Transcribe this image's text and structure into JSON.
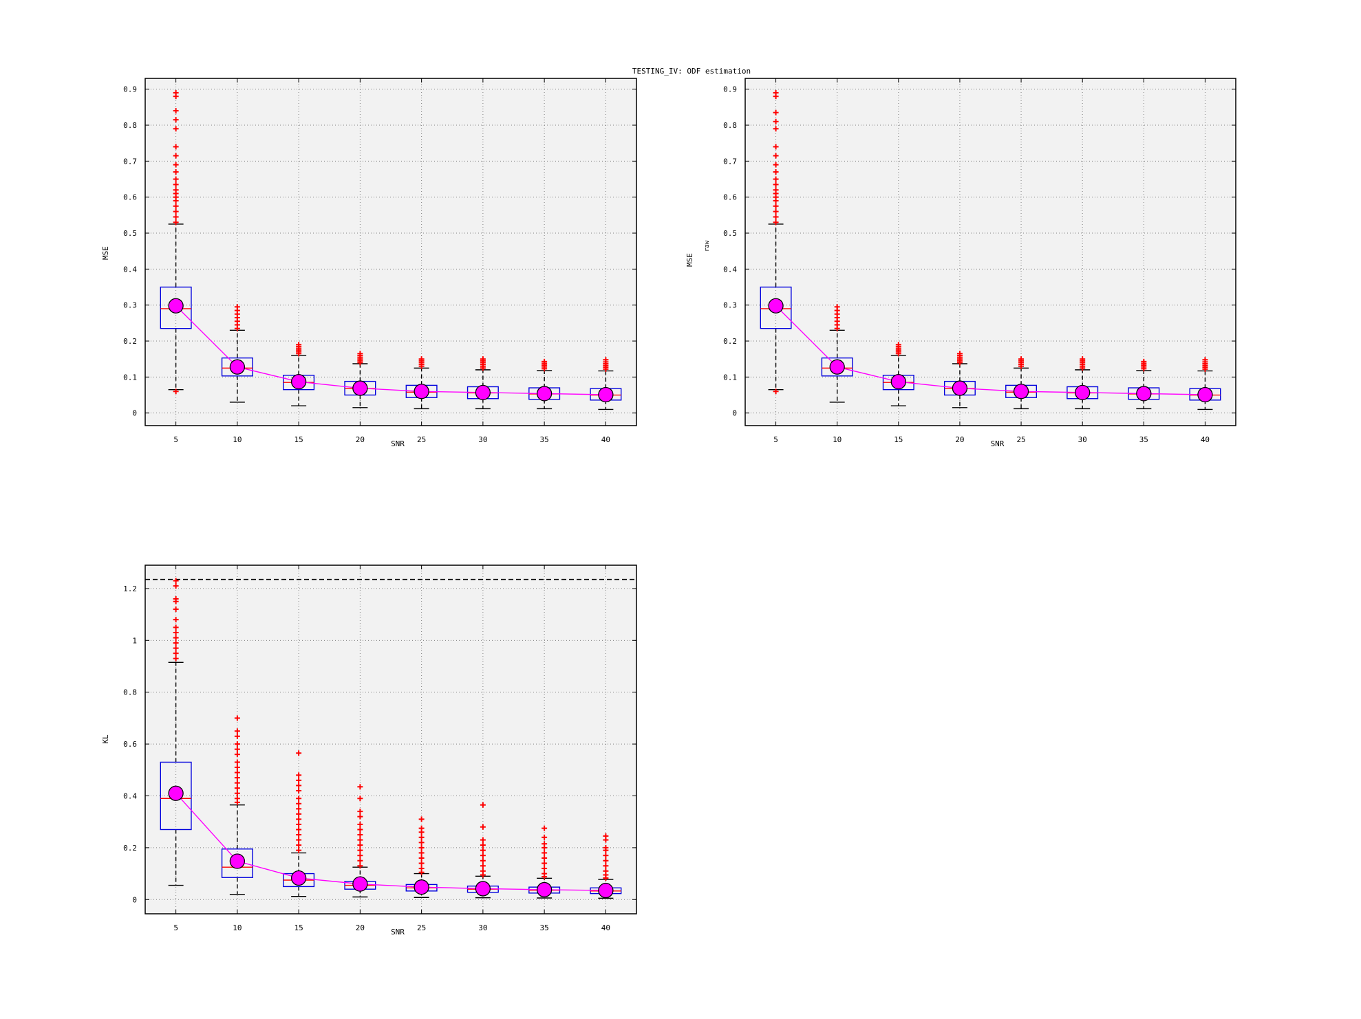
{
  "figure_title": "TESTING_IV: ODF estimation",
  "colors": {
    "panel_bg": "#f2f2f2",
    "box": "#0000dd",
    "median": "#ff0000",
    "whisker": "#000000",
    "outlier": "#ff0000",
    "mean_line": "#ff00ff",
    "mean_marker": "#ff00ff",
    "ref_line": "#000000"
  },
  "chart_data": [
    {
      "type": "box",
      "xlabel": "SNR",
      "ylabel": "MSE",
      "ylabel_sub": "",
      "ylim": [
        -0.035,
        0.93
      ],
      "yticks": [
        0,
        0.1,
        0.2,
        0.3,
        0.4,
        0.5,
        0.6,
        0.7,
        0.8,
        0.9
      ],
      "ytick_labels": [
        "0",
        "0.1",
        "0.2",
        "0.3",
        "0.4",
        "0.5",
        "0.6",
        "0.7",
        "0.8",
        "0.9"
      ],
      "categories": [
        "5",
        "10",
        "15",
        "20",
        "25",
        "30",
        "35",
        "40"
      ],
      "grid": true,
      "ref_line": null,
      "boxes": [
        {
          "whisker_low": 0.065,
          "q1": 0.235,
          "median": 0.29,
          "q3": 0.35,
          "whisker_high": 0.525,
          "mean": 0.298,
          "outliers": [
            0.06,
            0.53,
            0.545,
            0.56,
            0.575,
            0.59,
            0.6,
            0.61,
            0.62,
            0.635,
            0.65,
            0.67,
            0.69,
            0.715,
            0.74,
            0.79,
            0.815,
            0.84,
            0.88,
            0.89
          ]
        },
        {
          "whisker_low": 0.03,
          "q1": 0.103,
          "median": 0.125,
          "q3": 0.153,
          "whisker_high": 0.23,
          "mean": 0.128,
          "outliers": [
            0.235,
            0.245,
            0.255,
            0.265,
            0.275,
            0.285,
            0.295
          ]
        },
        {
          "whisker_low": 0.02,
          "q1": 0.065,
          "median": 0.085,
          "q3": 0.105,
          "whisker_high": 0.16,
          "mean": 0.087,
          "outliers": [
            0.165,
            0.17,
            0.175,
            0.18,
            0.185,
            0.19
          ]
        },
        {
          "whisker_low": 0.015,
          "q1": 0.05,
          "median": 0.068,
          "q3": 0.088,
          "whisker_high": 0.137,
          "mean": 0.069,
          "outliers": [
            0.14,
            0.145,
            0.15,
            0.155,
            0.16,
            0.165
          ]
        },
        {
          "whisker_low": 0.012,
          "q1": 0.043,
          "median": 0.058,
          "q3": 0.077,
          "whisker_high": 0.125,
          "mean": 0.06,
          "outliers": [
            0.13,
            0.135,
            0.14,
            0.145,
            0.15
          ]
        },
        {
          "whisker_low": 0.012,
          "q1": 0.04,
          "median": 0.056,
          "q3": 0.073,
          "whisker_high": 0.12,
          "mean": 0.057,
          "outliers": [
            0.125,
            0.13,
            0.135,
            0.14,
            0.145,
            0.15
          ]
        },
        {
          "whisker_low": 0.012,
          "q1": 0.038,
          "median": 0.053,
          "q3": 0.07,
          "whisker_high": 0.118,
          "mean": 0.054,
          "outliers": [
            0.123,
            0.128,
            0.133,
            0.138,
            0.143
          ]
        },
        {
          "whisker_low": 0.01,
          "q1": 0.036,
          "median": 0.05,
          "q3": 0.068,
          "whisker_high": 0.117,
          "mean": 0.051,
          "outliers": [
            0.122,
            0.127,
            0.132,
            0.137,
            0.142,
            0.148
          ]
        }
      ]
    },
    {
      "type": "box",
      "xlabel": "SNR",
      "ylabel": "MSE",
      "ylabel_sub": "raw",
      "ylim": [
        -0.035,
        0.93
      ],
      "yticks": [
        0,
        0.1,
        0.2,
        0.3,
        0.4,
        0.5,
        0.6,
        0.7,
        0.8,
        0.9
      ],
      "ytick_labels": [
        "0",
        "0.1",
        "0.2",
        "0.3",
        "0.4",
        "0.5",
        "0.6",
        "0.7",
        "0.8",
        "0.9"
      ],
      "categories": [
        "5",
        "10",
        "15",
        "20",
        "25",
        "30",
        "35",
        "40"
      ],
      "grid": true,
      "ref_line": null,
      "boxes": [
        {
          "whisker_low": 0.065,
          "q1": 0.235,
          "median": 0.29,
          "q3": 0.35,
          "whisker_high": 0.525,
          "mean": 0.298,
          "outliers": [
            0.06,
            0.53,
            0.545,
            0.56,
            0.575,
            0.59,
            0.6,
            0.61,
            0.62,
            0.635,
            0.65,
            0.67,
            0.69,
            0.715,
            0.74,
            0.79,
            0.81,
            0.835,
            0.88,
            0.89
          ]
        },
        {
          "whisker_low": 0.03,
          "q1": 0.103,
          "median": 0.125,
          "q3": 0.153,
          "whisker_high": 0.23,
          "mean": 0.128,
          "outliers": [
            0.235,
            0.245,
            0.255,
            0.265,
            0.275,
            0.285,
            0.295
          ]
        },
        {
          "whisker_low": 0.02,
          "q1": 0.065,
          "median": 0.085,
          "q3": 0.105,
          "whisker_high": 0.16,
          "mean": 0.087,
          "outliers": [
            0.165,
            0.17,
            0.175,
            0.18,
            0.185,
            0.19
          ]
        },
        {
          "whisker_low": 0.015,
          "q1": 0.05,
          "median": 0.068,
          "q3": 0.088,
          "whisker_high": 0.137,
          "mean": 0.069,
          "outliers": [
            0.14,
            0.145,
            0.15,
            0.155,
            0.16,
            0.165
          ]
        },
        {
          "whisker_low": 0.012,
          "q1": 0.043,
          "median": 0.058,
          "q3": 0.077,
          "whisker_high": 0.125,
          "mean": 0.06,
          "outliers": [
            0.13,
            0.135,
            0.14,
            0.145,
            0.15
          ]
        },
        {
          "whisker_low": 0.012,
          "q1": 0.04,
          "median": 0.056,
          "q3": 0.073,
          "whisker_high": 0.12,
          "mean": 0.057,
          "outliers": [
            0.125,
            0.13,
            0.135,
            0.14,
            0.145,
            0.15
          ]
        },
        {
          "whisker_low": 0.012,
          "q1": 0.038,
          "median": 0.053,
          "q3": 0.07,
          "whisker_high": 0.118,
          "mean": 0.054,
          "outliers": [
            0.123,
            0.128,
            0.133,
            0.138,
            0.143
          ]
        },
        {
          "whisker_low": 0.01,
          "q1": 0.036,
          "median": 0.05,
          "q3": 0.068,
          "whisker_high": 0.117,
          "mean": 0.051,
          "outliers": [
            0.122,
            0.127,
            0.132,
            0.137,
            0.142,
            0.148
          ]
        }
      ]
    },
    {
      "type": "box",
      "xlabel": "SNR",
      "ylabel": "KL",
      "ylabel_sub": "",
      "ylim": [
        -0.055,
        1.29
      ],
      "yticks": [
        0,
        0.2,
        0.4,
        0.6,
        0.8,
        1.0,
        1.2
      ],
      "ytick_labels": [
        "0",
        "0.2",
        "0.4",
        "0.6",
        "0.8",
        "1",
        "1.2"
      ],
      "categories": [
        "5",
        "10",
        "15",
        "20",
        "25",
        "30",
        "35",
        "40"
      ],
      "grid": true,
      "ref_line": 1.235,
      "boxes": [
        {
          "whisker_low": 0.055,
          "q1": 0.27,
          "median": 0.39,
          "q3": 0.53,
          "whisker_high": 0.915,
          "mean": 0.41,
          "outliers": [
            0.93,
            0.95,
            0.97,
            0.99,
            1.01,
            1.03,
            1.05,
            1.08,
            1.12,
            1.15,
            1.16,
            1.21,
            1.23
          ]
        },
        {
          "whisker_low": 0.02,
          "q1": 0.085,
          "median": 0.125,
          "q3": 0.195,
          "whisker_high": 0.365,
          "mean": 0.148,
          "outliers": [
            0.375,
            0.39,
            0.41,
            0.43,
            0.45,
            0.47,
            0.49,
            0.51,
            0.53,
            0.56,
            0.58,
            0.6,
            0.63,
            0.65,
            0.7
          ]
        },
        {
          "whisker_low": 0.012,
          "q1": 0.05,
          "median": 0.075,
          "q3": 0.1,
          "whisker_high": 0.18,
          "mean": 0.083,
          "outliers": [
            0.19,
            0.21,
            0.23,
            0.25,
            0.27,
            0.29,
            0.31,
            0.33,
            0.35,
            0.37,
            0.39,
            0.42,
            0.44,
            0.46,
            0.48,
            0.565
          ]
        },
        {
          "whisker_low": 0.01,
          "q1": 0.04,
          "median": 0.055,
          "q3": 0.07,
          "whisker_high": 0.125,
          "mean": 0.06,
          "outliers": [
            0.13,
            0.15,
            0.17,
            0.19,
            0.21,
            0.23,
            0.25,
            0.27,
            0.29,
            0.32,
            0.34,
            0.39,
            0.435
          ]
        },
        {
          "whisker_low": 0.008,
          "q1": 0.033,
          "median": 0.045,
          "q3": 0.058,
          "whisker_high": 0.1,
          "mean": 0.048,
          "outliers": [
            0.105,
            0.12,
            0.14,
            0.16,
            0.18,
            0.2,
            0.22,
            0.24,
            0.26,
            0.275,
            0.31
          ]
        },
        {
          "whisker_low": 0.007,
          "q1": 0.028,
          "median": 0.04,
          "q3": 0.052,
          "whisker_high": 0.09,
          "mean": 0.042,
          "outliers": [
            0.095,
            0.11,
            0.13,
            0.15,
            0.17,
            0.19,
            0.21,
            0.23,
            0.28,
            0.365
          ]
        },
        {
          "whisker_low": 0.006,
          "q1": 0.025,
          "median": 0.036,
          "q3": 0.048,
          "whisker_high": 0.082,
          "mean": 0.038,
          "outliers": [
            0.088,
            0.1,
            0.12,
            0.14,
            0.16,
            0.18,
            0.2,
            0.215,
            0.24,
            0.275
          ]
        },
        {
          "whisker_low": 0.005,
          "q1": 0.023,
          "median": 0.033,
          "q3": 0.045,
          "whisker_high": 0.078,
          "mean": 0.035,
          "outliers": [
            0.083,
            0.095,
            0.11,
            0.13,
            0.15,
            0.17,
            0.19,
            0.2,
            0.23,
            0.245
          ]
        }
      ]
    }
  ]
}
